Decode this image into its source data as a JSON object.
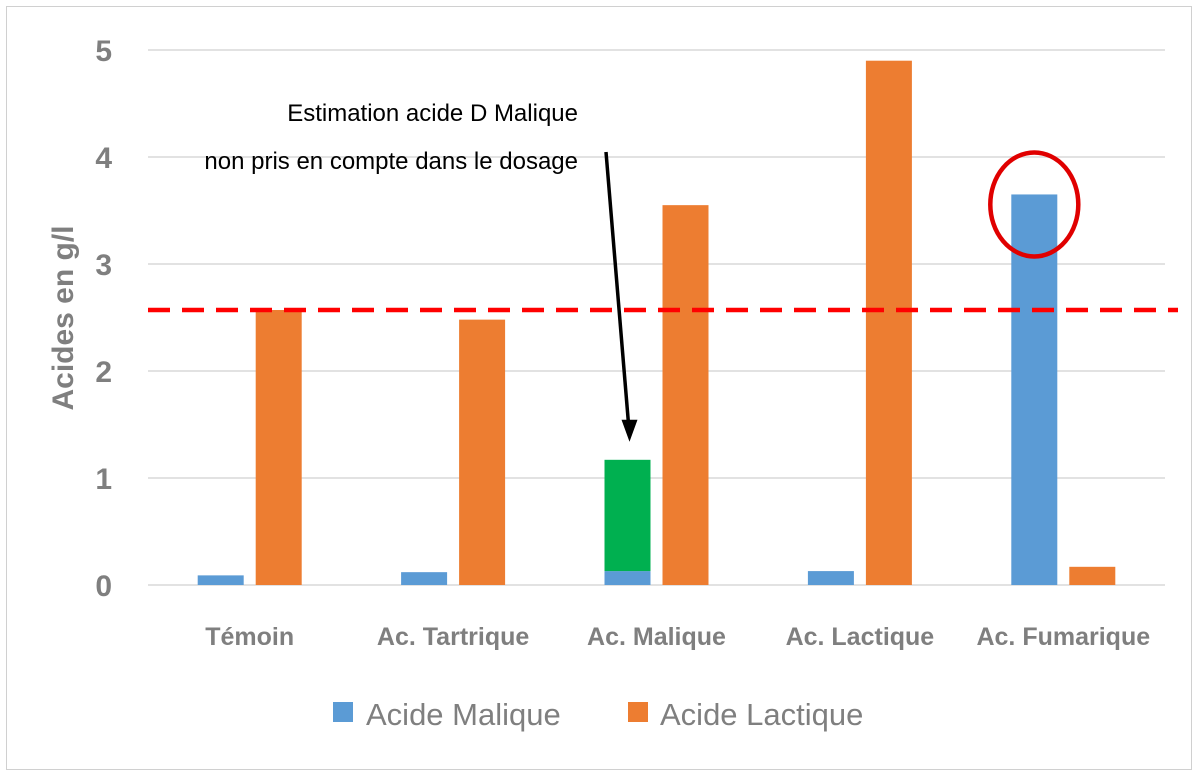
{
  "chart_data": {
    "type": "bar",
    "title": "",
    "xlabel": "",
    "ylabel": "Acides en g/l",
    "ylim": [
      0,
      5
    ],
    "yticks": [
      "0",
      "1",
      "2",
      "3",
      "4",
      "5"
    ],
    "grid": true,
    "legend_position": "bottom",
    "categories": [
      "Témoin",
      "Ac. Tartrique",
      "Ac. Malique",
      "Ac. Lactique",
      "Ac. Fumarique"
    ],
    "series": [
      {
        "name": "Acide Malique",
        "color": "#5b9bd5",
        "values": [
          0.09,
          0.12,
          0.13,
          0.13,
          3.65
        ]
      },
      {
        "name": "Acide Lactique",
        "color": "#ed7d31",
        "values": [
          2.57,
          2.48,
          3.55,
          4.9,
          0.17
        ]
      }
    ],
    "estimate_segment": {
      "category": "Ac. Malique",
      "series": "Acide Malique",
      "from": 0.13,
      "to": 1.17,
      "color": "#00b050"
    },
    "reference_line": {
      "value": 2.57,
      "color": "#ff0000",
      "style": "dashed"
    },
    "highlight": {
      "category": "Ac. Fumarique",
      "series": "Acide Malique",
      "color": "#e00000"
    },
    "annotation": {
      "lines": [
        "Estimation acide D Malique",
        "non pris en compte dans le dosage"
      ],
      "target": "Ac. Malique"
    }
  }
}
